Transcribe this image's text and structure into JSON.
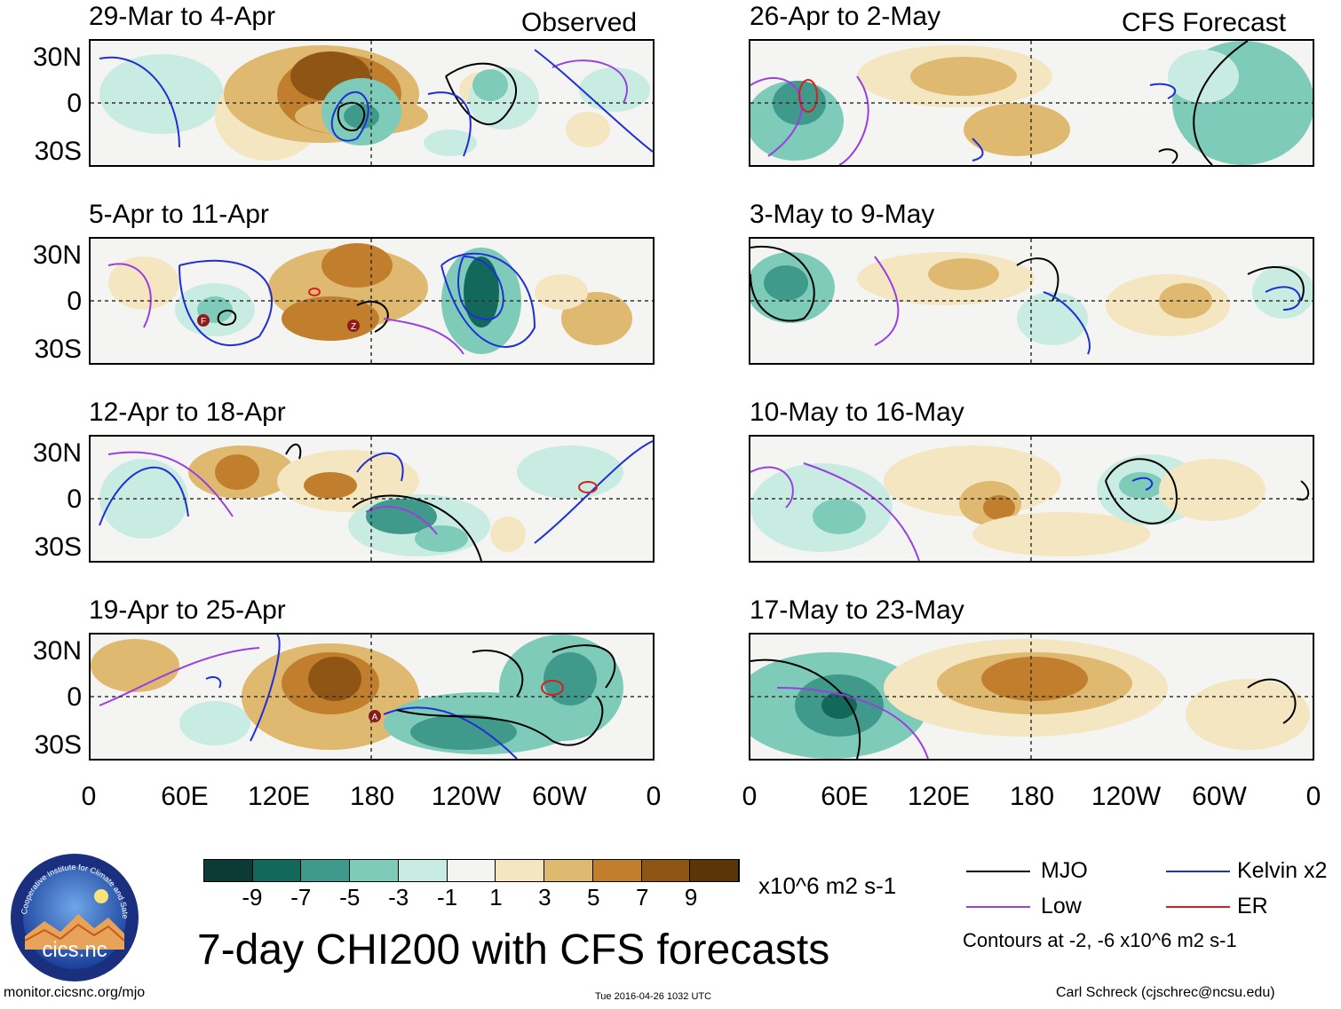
{
  "header": {
    "left_corner": "Observed",
    "right_corner": "CFS Forecast"
  },
  "panels": [
    {
      "title": "29-Mar to 4-Apr"
    },
    {
      "title": "5-Apr to 11-Apr"
    },
    {
      "title": "12-Apr to 18-Apr"
    },
    {
      "title": "19-Apr to 25-Apr"
    },
    {
      "title": "26-Apr to 2-May"
    },
    {
      "title": "3-May to 9-May"
    },
    {
      "title": "10-May to 16-May"
    },
    {
      "title": "17-May to 23-May"
    }
  ],
  "lat_labels": [
    "30N",
    "0",
    "30S"
  ],
  "lon_labels": [
    "0",
    "60E",
    "120E",
    "180",
    "120W",
    "60W",
    "0"
  ],
  "colorbar": {
    "ticks": [
      "-9",
      "-7",
      "-5",
      "-3",
      "-1",
      "1",
      "3",
      "5",
      "7",
      "9"
    ],
    "colors": [
      "#0b3b34",
      "#13685c",
      "#3f9a8b",
      "#7fcbba",
      "#c9ece2",
      "#f4f4f2",
      "#f4e6c0",
      "#dfb96f",
      "#c17f2e",
      "#8f5514",
      "#5a3508"
    ],
    "units": "x10^6 m2 s-1"
  },
  "main_title": "7-day CHI200 with CFS forecasts",
  "legend": {
    "items": [
      {
        "label": "MJO",
        "color": "#000000"
      },
      {
        "label": "Kelvin x2",
        "color": "#1f2fd6"
      },
      {
        "label": "Low",
        "color": "#9a3fe0"
      },
      {
        "label": "ER",
        "color": "#d61f1f"
      }
    ],
    "contours_note": "Contours at -2, -6 x10^6 m2 s-1"
  },
  "logo_text": "cics.nc",
  "logo_ring_text": "Cooperative Institute for Climate and Satellites",
  "footer": {
    "left": "monitor.cicsnc.org/mjo",
    "center": "Tue 2016-04-26 1032 UTC",
    "right": "Carl Schreck (cjschrec@ncsu.edu)"
  },
  "cyclone_markers": [
    "F",
    "Z",
    "A"
  ]
}
